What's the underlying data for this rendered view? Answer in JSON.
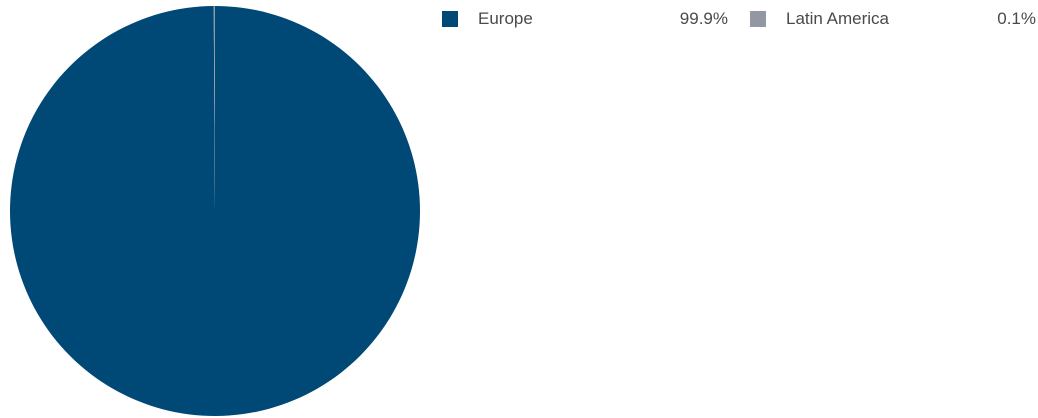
{
  "chart_data": {
    "type": "pie",
    "title": "",
    "slices": [
      {
        "label": "Europe",
        "value": 99.9,
        "display": "99.9%",
        "color": "#004876"
      },
      {
        "label": "Latin America",
        "value": 0.1,
        "display": "0.1%",
        "color": "#9198a3"
      }
    ],
    "legend_position": "top-right",
    "start_angle": "12 o'clock",
    "direction": "clockwise"
  }
}
